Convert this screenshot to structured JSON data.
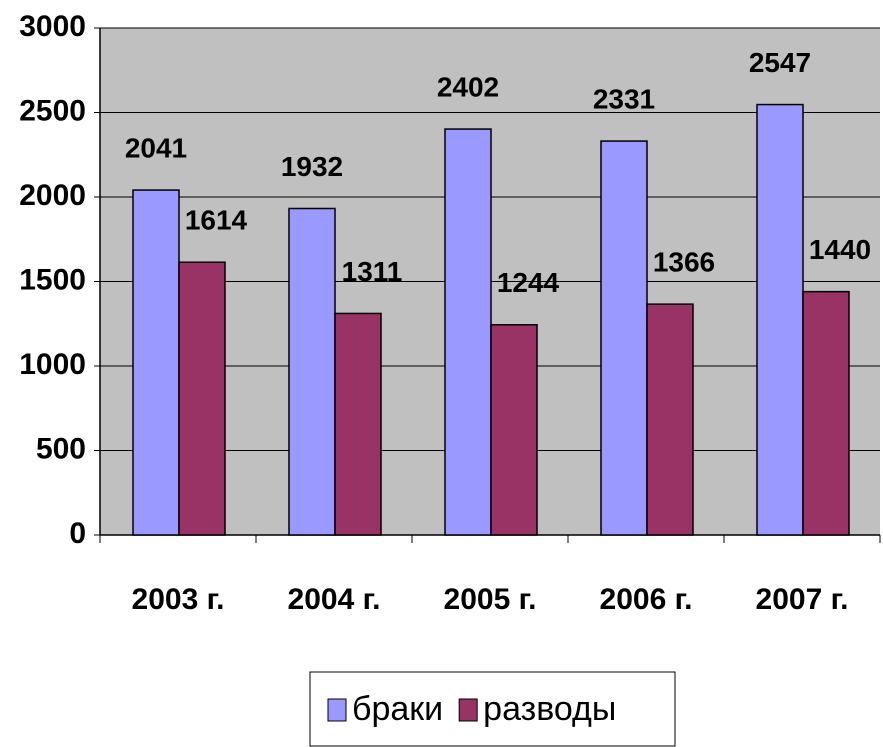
{
  "chart_data": {
    "type": "bar",
    "categories": [
      "2003 г.",
      "2004 г.",
      "2005 г.",
      "2006 г.",
      "2007 г."
    ],
    "series": [
      {
        "name": "браки",
        "color": "#9999ff",
        "values": [
          2041,
          1932,
          2402,
          2331,
          2547
        ]
      },
      {
        "name": "разводы",
        "color": "#993366",
        "values": [
          1614,
          1311,
          1244,
          1366,
          1440
        ]
      }
    ],
    "ylim": [
      0,
      3000
    ],
    "yticks": [
      0,
      500,
      1000,
      1500,
      2000,
      2500,
      3000
    ],
    "grid": true,
    "plot_background": "#c0c0c0",
    "legend": "bottom"
  }
}
